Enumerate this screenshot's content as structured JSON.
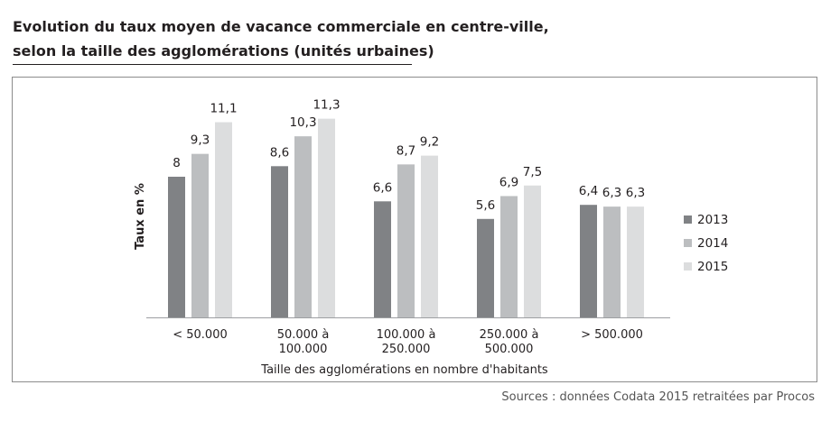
{
  "header": {
    "title_line1": "Evolution du taux moyen de vacance commerciale en centre-ville,",
    "title_line2": "selon la taille des agglomérations (unités urbaines)"
  },
  "footer": {
    "source": "Sources : données Codata 2015 retraitées par Procos"
  },
  "chart_data": {
    "type": "bar",
    "ylabel": "Taux en %",
    "xlabel": "Taille des agglomérations en nombre d'habitants",
    "categories": [
      [
        "< 50.000"
      ],
      [
        "50.000 à",
        "100.000"
      ],
      [
        "100.000 à",
        "250.000"
      ],
      [
        "250.000 à",
        "500.000"
      ],
      [
        "> 500.000"
      ]
    ],
    "series": [
      {
        "name": "2013",
        "color": "#808285",
        "values": [
          8,
          8.6,
          6.6,
          5.6,
          6.4
        ],
        "labels": [
          "8",
          "8,6",
          "6,6",
          "5,6",
          "6,4"
        ]
      },
      {
        "name": "2014",
        "color": "#bcbec0",
        "values": [
          9.3,
          10.3,
          8.7,
          6.9,
          6.3
        ],
        "labels": [
          "9,3",
          "10,3",
          "8,7",
          "6,9",
          "6,3"
        ]
      },
      {
        "name": "2015",
        "color": "#dcddde",
        "values": [
          11.1,
          11.3,
          9.2,
          7.5,
          6.3
        ],
        "labels": [
          "11,1",
          "11,3",
          "9,2",
          "7,5",
          "6,3"
        ]
      }
    ],
    "ylim": [
      0,
      12
    ],
    "grid": false,
    "legend": "right"
  }
}
